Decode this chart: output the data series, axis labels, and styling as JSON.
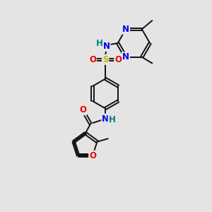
{
  "bg_color": "#e4e4e4",
  "bond_color": "#111111",
  "bond_lw": 1.4,
  "dbo": 0.06,
  "atom_colors": {
    "N": "#0000ee",
    "O": "#ee0000",
    "S": "#bbbb00",
    "H": "#008080",
    "C": "#111111"
  },
  "fs": 8.5,
  "fw": "bold"
}
